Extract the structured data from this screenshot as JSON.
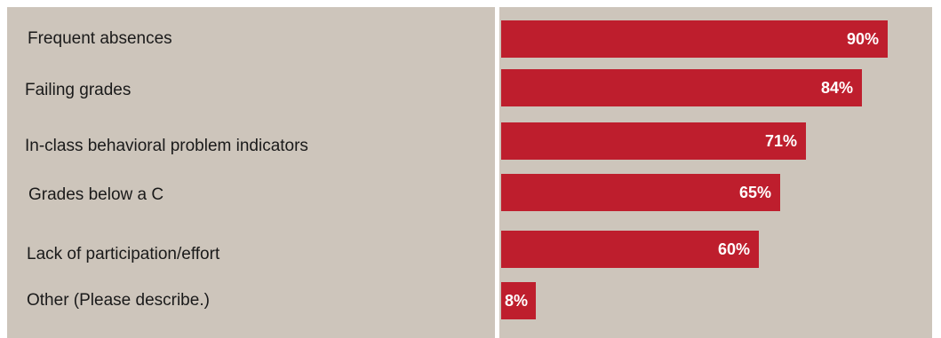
{
  "chart_data": {
    "type": "bar",
    "orientation": "horizontal",
    "categories": [
      "Frequent absences",
      "Failing grades",
      "In-class behavioral problem indicators",
      "Grades below a C",
      "Lack of participation/effort",
      "Other (Please describe.)"
    ],
    "values": [
      90,
      84,
      71,
      65,
      60,
      8
    ],
    "value_labels": [
      "90%",
      "84%",
      "71%",
      "65%",
      "60%",
      "8%"
    ],
    "xlim": [
      0,
      100
    ],
    "grid": false,
    "bar_color": "#be1e2d",
    "background_color": "#cdc5bb"
  }
}
